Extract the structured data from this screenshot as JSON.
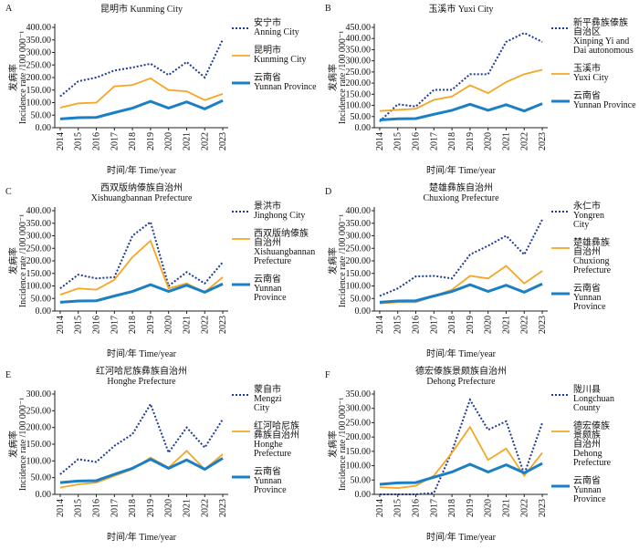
{
  "chart_data": [
    {
      "type": "line",
      "label": "A",
      "title": "昆明市 Kunming City",
      "ylabel": "发病率\nIncidence rate /100 000⁻¹",
      "xlabel": "时间/年 Time/year",
      "categories": [
        "2014",
        "2015",
        "2016",
        "2017",
        "2018",
        "2019",
        "2020",
        "2021",
        "2022",
        "2023"
      ],
      "ylim": [
        0,
        400
      ],
      "yticks": [
        {
          "value": 0,
          "label": "0.00"
        },
        {
          "value": 50,
          "label": "50.00"
        },
        {
          "value": 100,
          "label": "100.00"
        },
        {
          "value": 150,
          "label": "150.00"
        },
        {
          "value": 200,
          "label": "200.00"
        },
        {
          "value": 250,
          "label": "250.00"
        },
        {
          "value": 300,
          "label": "300.00"
        },
        {
          "value": 350,
          "label": "350.00"
        },
        {
          "value": 400,
          "label": "400.00"
        }
      ],
      "series": [
        {
          "name": "安宁市\nAnning City",
          "color": "#1f3a93",
          "style": "dotted",
          "values": [
            125,
            185,
            200,
            228,
            240,
            255,
            210,
            262,
            200,
            352
          ]
        },
        {
          "name": "昆明市\nKunming City",
          "color": "#f5a623",
          "style": "solid",
          "values": [
            80,
            97,
            100,
            165,
            170,
            197,
            150,
            145,
            110,
            135
          ]
        },
        {
          "name": "云南省\nYunnan Province",
          "color": "#1a7fc4",
          "style": "thick",
          "values": [
            35,
            40,
            41,
            60,
            78,
            105,
            78,
            103,
            75,
            108
          ]
        }
      ]
    },
    {
      "type": "line",
      "label": "B",
      "title": "玉溪市 Yuxi City",
      "ylabel": "发病率\nIncidence rate /100 000⁻¹",
      "xlabel": "时间/年 Time/year",
      "categories": [
        "2014",
        "2015",
        "2016",
        "2017",
        "2018",
        "2019",
        "2020",
        "2021",
        "2022",
        "2023"
      ],
      "ylim": [
        0,
        450
      ],
      "yticks": [
        {
          "value": 0,
          "label": "0.00"
        },
        {
          "value": 50,
          "label": "50.00"
        },
        {
          "value": 100,
          "label": "100.00"
        },
        {
          "value": 150,
          "label": "150.00"
        },
        {
          "value": 200,
          "label": "200.00"
        },
        {
          "value": 250,
          "label": "250.00"
        },
        {
          "value": 300,
          "label": "300.00"
        },
        {
          "value": 350,
          "label": "350.00"
        },
        {
          "value": 400,
          "label": "400.00"
        },
        {
          "value": 450,
          "label": "450.00"
        }
      ],
      "series": [
        {
          "name": "新平彝族傣族\n自治区\nXinping Yi and\nDai autonomous",
          "color": "#1f3a93",
          "style": "dotted",
          "values": [
            28,
            105,
            95,
            170,
            170,
            240,
            240,
            385,
            425,
            385
          ]
        },
        {
          "name": "玉溪市\nYuxi City",
          "color": "#f5a623",
          "style": "solid",
          "values": [
            75,
            80,
            85,
            125,
            140,
            190,
            155,
            205,
            240,
            260
          ]
        },
        {
          "name": "云南省\nYunnan Province",
          "color": "#1a7fc4",
          "style": "thick",
          "values": [
            35,
            40,
            41,
            60,
            78,
            105,
            78,
            103,
            75,
            108
          ]
        }
      ]
    },
    {
      "type": "line",
      "label": "C",
      "title": "西双版纳傣族自治州\nXishuangbannan Prefecture",
      "ylabel": "发病率\nIncidence rate /100 000⁻¹",
      "xlabel": "时间/年 Time/year",
      "categories": [
        "2014",
        "2015",
        "2016",
        "2017",
        "2018",
        "2019",
        "2020",
        "2021",
        "2022",
        "2023"
      ],
      "ylim": [
        0,
        400
      ],
      "yticks": [
        {
          "value": 0,
          "label": "0.00"
        },
        {
          "value": 50,
          "label": "50.00"
        },
        {
          "value": 100,
          "label": "100.00"
        },
        {
          "value": 150,
          "label": "150.00"
        },
        {
          "value": 200,
          "label": "200.00"
        },
        {
          "value": 250,
          "label": "250.00"
        },
        {
          "value": 300,
          "label": "300.00"
        },
        {
          "value": 350,
          "label": "350.00"
        },
        {
          "value": 400,
          "label": "400.00"
        }
      ],
      "series": [
        {
          "name": "景洪市\nJinghong City",
          "color": "#1f3a93",
          "style": "dotted",
          "values": [
            90,
            145,
            130,
            135,
            300,
            355,
            100,
            155,
            110,
            195
          ]
        },
        {
          "name": "西双版纳傣族\n自治州\nXishuangbannan\nPrefecture",
          "color": "#f5a623",
          "style": "solid",
          "values": [
            65,
            90,
            85,
            125,
            215,
            280,
            90,
            110,
            75,
            135
          ]
        },
        {
          "name": "云南省\nYunnan\nProvince",
          "color": "#1a7fc4",
          "style": "thick",
          "values": [
            35,
            40,
            41,
            60,
            78,
            105,
            78,
            103,
            75,
            108
          ]
        }
      ]
    },
    {
      "type": "line",
      "label": "D",
      "title": "楚雄彝族自治州\nChuxiong Prefecture",
      "ylabel": "发病率\nIncidence rate /100 000⁻¹",
      "xlabel": "时间/年 Time/year",
      "categories": [
        "2014",
        "2015",
        "2016",
        "2017",
        "2018",
        "2019",
        "2020",
        "2021",
        "2022",
        "2023"
      ],
      "ylim": [
        0,
        400
      ],
      "yticks": [
        {
          "value": 0,
          "label": "0.00"
        },
        {
          "value": 50,
          "label": "50.00"
        },
        {
          "value": 100,
          "label": "100.00"
        },
        {
          "value": 150,
          "label": "150.00"
        },
        {
          "value": 200,
          "label": "200.00"
        },
        {
          "value": 250,
          "label": "250.00"
        },
        {
          "value": 300,
          "label": "300.00"
        },
        {
          "value": 350,
          "label": "350.00"
        },
        {
          "value": 400,
          "label": "400.00"
        }
      ],
      "series": [
        {
          "name": "永仁市\nYongren\nCity",
          "color": "#1f3a93",
          "style": "dotted",
          "values": [
            60,
            90,
            138,
            140,
            130,
            225,
            260,
            300,
            225,
            365
          ]
        },
        {
          "name": "楚雄彝族\n自治州\nChuxiong\nPrefecture",
          "color": "#f5a623",
          "style": "solid",
          "values": [
            30,
            35,
            35,
            60,
            85,
            140,
            130,
            180,
            110,
            160
          ]
        },
        {
          "name": "云南省\nYunnan\nProvince",
          "color": "#1a7fc4",
          "style": "thick",
          "values": [
            35,
            40,
            41,
            60,
            78,
            105,
            78,
            103,
            75,
            108
          ]
        }
      ]
    },
    {
      "type": "line",
      "label": "E",
      "title": "红河哈尼族彝族自治州\nHonghe Prefecture",
      "ylabel": "发病率\nIncidence rate /100 000⁻¹",
      "xlabel": "时间/年 Time/year",
      "categories": [
        "2014",
        "2015",
        "2016",
        "2017",
        "2018",
        "2019",
        "2020",
        "2021",
        "2022",
        "2023"
      ],
      "ylim": [
        0,
        300
      ],
      "yticks": [
        {
          "value": 0,
          "label": "0.00"
        },
        {
          "value": 50,
          "label": "50.00"
        },
        {
          "value": 100,
          "label": "100.00"
        },
        {
          "value": 150,
          "label": "150.00"
        },
        {
          "value": 200,
          "label": "200.00"
        },
        {
          "value": 250,
          "label": "250.00"
        },
        {
          "value": 300,
          "label": "300.00"
        }
      ],
      "series": [
        {
          "name": "蒙自市\nMengzi\nCity",
          "color": "#1f3a93",
          "style": "dotted",
          "values": [
            60,
            105,
            97,
            145,
            180,
            270,
            125,
            200,
            140,
            225
          ]
        },
        {
          "name": "红河哈尼族\n彝族自治州\nHonghe\nPrefecture",
          "color": "#f5a623",
          "style": "solid",
          "values": [
            20,
            30,
            35,
            55,
            75,
            110,
            80,
            130,
            75,
            120
          ]
        },
        {
          "name": "云南省\nYunnan\nProvince",
          "color": "#1a7fc4",
          "style": "thick",
          "values": [
            35,
            40,
            41,
            60,
            78,
            105,
            78,
            103,
            75,
            108
          ]
        }
      ]
    },
    {
      "type": "line",
      "label": "F",
      "title": "德宏傣族景颇族自治州\nDehong Prefecture",
      "ylabel": "发病率\nIncidence rate /100 000⁻¹",
      "xlabel": "时间/年 Time/year",
      "categories": [
        "2014",
        "2015",
        "2016",
        "2017",
        "2018",
        "2019",
        "2020",
        "2021",
        "2022",
        "2023"
      ],
      "ylim": [
        0,
        350
      ],
      "yticks": [
        {
          "value": 0,
          "label": "0.00"
        },
        {
          "value": 50,
          "label": "50.00"
        },
        {
          "value": 100,
          "label": "100.00"
        },
        {
          "value": 150,
          "label": "150.00"
        },
        {
          "value": 200,
          "label": "200.00"
        },
        {
          "value": 250,
          "label": "250.00"
        },
        {
          "value": 300,
          "label": "300.00"
        },
        {
          "value": 350,
          "label": "350.00"
        }
      ],
      "series": [
        {
          "name": "陇川县\nLongchuan\nCounty",
          "color": "#1f3a93",
          "style": "dotted",
          "values": [
            0,
            0,
            0,
            5,
            150,
            330,
            225,
            255,
            70,
            250
          ]
        },
        {
          "name": "德宏傣族\n景颇族\n自治州\nDehong\nPrefecture",
          "color": "#f5a623",
          "style": "solid",
          "values": [
            25,
            22,
            30,
            65,
            145,
            235,
            120,
            160,
            65,
            145
          ]
        },
        {
          "name": "云南省\nYunnan\nProvince",
          "color": "#1a7fc4",
          "style": "thick",
          "values": [
            35,
            40,
            41,
            60,
            78,
            105,
            78,
            103,
            75,
            108
          ]
        }
      ]
    }
  ]
}
